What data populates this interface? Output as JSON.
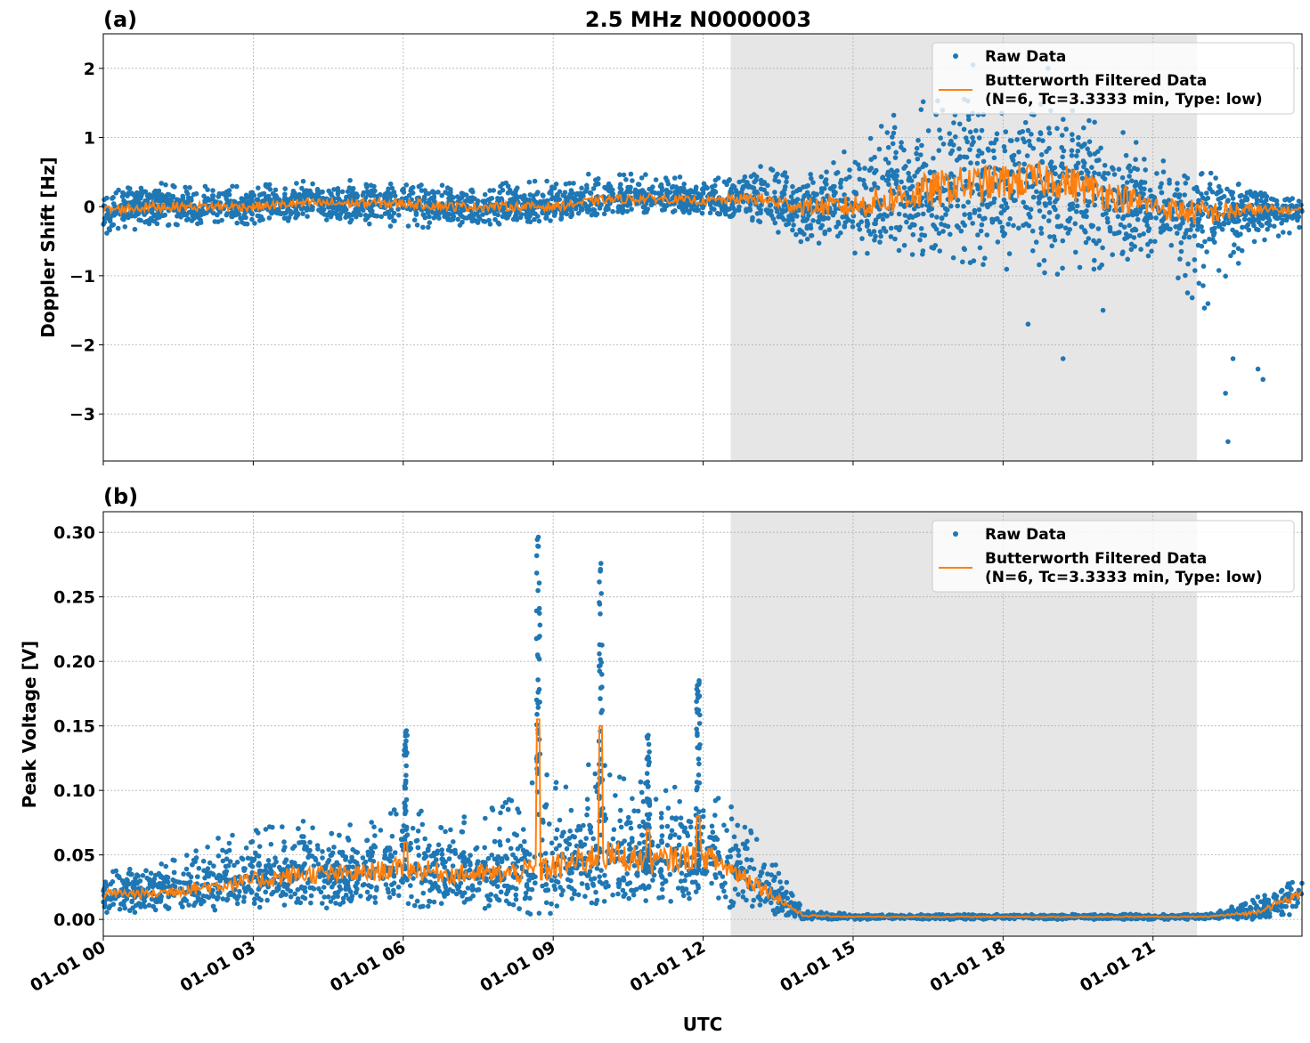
{
  "chart_data": [
    {
      "type": "scatter",
      "panel_label": "(a)",
      "title": "2.5 MHz N0000003",
      "xlabel": "",
      "ylabel": "Doppler Shift [Hz]",
      "xlim_hours": [
        0,
        24
      ],
      "ylim": [
        -3.68,
        2.5
      ],
      "yticks": [
        -3,
        -2,
        -1,
        0,
        1,
        2
      ],
      "ytick_labels": [
        "−3",
        "−2",
        "−1",
        "0",
        "1",
        "2"
      ],
      "grid": true,
      "legend_position": "upper-right",
      "legend": [
        "Raw Data",
        "Butterworth Filtered Data",
        "(N=6, Tc=3.3333 min, Type: low)"
      ],
      "shaded_region_hours": [
        12.55,
        21.88
      ],
      "series_columns": [
        "hour",
        "filtered",
        "raw_low",
        "raw_high"
      ],
      "series": [
        [
          0,
          -0.05,
          -0.4,
          0.2
        ],
        [
          1,
          0.0,
          -0.3,
          0.35
        ],
        [
          2,
          0.0,
          -0.3,
          0.3
        ],
        [
          3,
          0.0,
          -0.3,
          0.3
        ],
        [
          4,
          0.05,
          -0.2,
          0.4
        ],
        [
          5,
          0.05,
          -0.25,
          0.4
        ],
        [
          6,
          0.05,
          -0.3,
          0.35
        ],
        [
          7,
          0.0,
          -0.3,
          0.3
        ],
        [
          8,
          0.0,
          -0.25,
          0.35
        ],
        [
          9,
          0.0,
          -0.2,
          0.4
        ],
        [
          10,
          0.1,
          -0.1,
          0.5
        ],
        [
          11,
          0.12,
          -0.1,
          0.5
        ],
        [
          12,
          0.08,
          -0.1,
          0.4
        ],
        [
          13,
          0.12,
          -0.2,
          0.6
        ],
        [
          14,
          0.0,
          -0.6,
          0.5
        ],
        [
          15,
          0.0,
          -0.7,
          0.9
        ],
        [
          16,
          0.15,
          -0.8,
          1.5
        ],
        [
          17,
          0.3,
          -0.9,
          1.6
        ],
        [
          18,
          0.35,
          -1.0,
          1.5
        ],
        [
          19,
          0.4,
          -1.0,
          1.5
        ],
        [
          20,
          0.2,
          -0.9,
          1.3
        ],
        [
          21,
          0.0,
          -0.7,
          0.8
        ],
        [
          22,
          -0.1,
          -1.5,
          0.3
        ],
        [
          23,
          -0.05,
          -0.6,
          0.2
        ],
        [
          24,
          -0.05,
          -0.3,
          0.1
        ]
      ],
      "outliers": [
        [
          19.2,
          -2.2
        ],
        [
          22.5,
          -3.4
        ],
        [
          22.45,
          -2.7
        ],
        [
          23.2,
          -2.5
        ],
        [
          23.1,
          -2.35
        ],
        [
          18.5,
          -1.7
        ],
        [
          20.0,
          -1.5
        ],
        [
          22.6,
          -2.2
        ],
        [
          17.4,
          2.05
        ],
        [
          18.9,
          2.0
        ]
      ]
    },
    {
      "type": "scatter",
      "panel_label": "(b)",
      "xlabel": "UTC",
      "ylabel": "Peak Voltage [V]",
      "xlim_hours": [
        0,
        24
      ],
      "ylim": [
        -0.013,
        0.316
      ],
      "yticks": [
        0,
        0.05,
        0.1,
        0.15,
        0.2,
        0.25,
        0.3
      ],
      "ytick_labels": [
        "0.00",
        "0.05",
        "0.10",
        "0.15",
        "0.20",
        "0.25",
        "0.30"
      ],
      "xticks_hours": [
        0,
        3,
        6,
        9,
        12,
        15,
        18,
        21
      ],
      "xtick_labels": [
        "01-01 00",
        "01-01 03",
        "01-01 06",
        "01-01 09",
        "01-01 12",
        "01-01 15",
        "01-01 18",
        "01-01 21"
      ],
      "grid": true,
      "legend_position": "upper-right",
      "legend": [
        "Raw Data",
        "Butterworth Filtered Data",
        "(N=6, Tc=3.3333 min, Type: low)"
      ],
      "shaded_region_hours": [
        12.55,
        21.88
      ],
      "series_columns": [
        "hour",
        "filtered",
        "raw_low",
        "raw_high"
      ],
      "series": [
        [
          0,
          0.02,
          0.005,
          0.04
        ],
        [
          1,
          0.02,
          0.005,
          0.04
        ],
        [
          2,
          0.025,
          0.01,
          0.06
        ],
        [
          3,
          0.03,
          0.01,
          0.07
        ],
        [
          4,
          0.035,
          0.01,
          0.08
        ],
        [
          5,
          0.035,
          0.01,
          0.075
        ],
        [
          6,
          0.04,
          0.01,
          0.09
        ],
        [
          7,
          0.035,
          0.01,
          0.08
        ],
        [
          8,
          0.035,
          0.015,
          0.09
        ],
        [
          9,
          0.04,
          0.015,
          0.12
        ],
        [
          10,
          0.05,
          0.015,
          0.12
        ],
        [
          11,
          0.045,
          0.015,
          0.11
        ],
        [
          12,
          0.05,
          0.015,
          0.11
        ],
        [
          13,
          0.03,
          0.01,
          0.08
        ],
        [
          14,
          0.003,
          0.0,
          0.008
        ],
        [
          15,
          0.002,
          0.0,
          0.004
        ],
        [
          16,
          0.002,
          0.0,
          0.004
        ],
        [
          17,
          0.002,
          0.0,
          0.004
        ],
        [
          18,
          0.002,
          0.0,
          0.004
        ],
        [
          19,
          0.002,
          0.0,
          0.004
        ],
        [
          20,
          0.002,
          0.0,
          0.004
        ],
        [
          21,
          0.002,
          0.0,
          0.004
        ],
        [
          22,
          0.002,
          0.0,
          0.004
        ],
        [
          23,
          0.005,
          0.0,
          0.015
        ],
        [
          24,
          0.02,
          0.005,
          0.045
        ]
      ],
      "spikes": [
        [
          8.7,
          0.3,
          0.155
        ],
        [
          9.95,
          0.278,
          0.15
        ],
        [
          11.9,
          0.188,
          0.08
        ],
        [
          6.05,
          0.15,
          0.06
        ],
        [
          10.9,
          0.163,
          0.07
        ]
      ]
    }
  ]
}
